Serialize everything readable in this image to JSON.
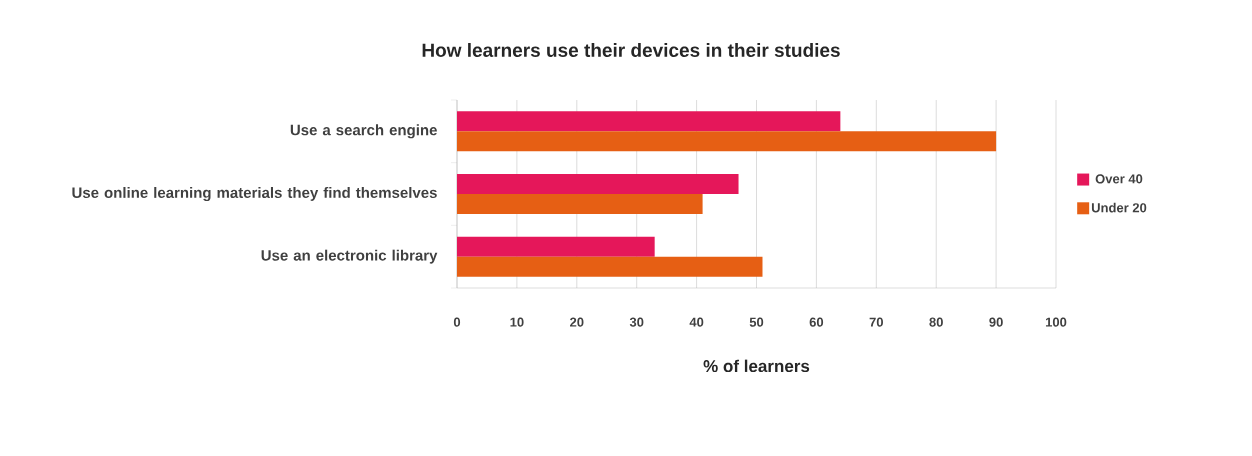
{
  "chart_data": {
    "type": "bar",
    "orientation": "horizontal",
    "title": "How learners use their devices in their studies",
    "xlabel": "% of learners",
    "categories": [
      "Use a search engine",
      "Use online learning materials they find themselves",
      "Use an electronic library"
    ],
    "series": [
      {
        "name": "Over 40",
        "color": "#e5175a",
        "values": [
          64,
          47,
          33
        ]
      },
      {
        "name": "Under 20",
        "color": "#e65f14",
        "values": [
          90,
          41,
          51
        ]
      }
    ],
    "xlim": [
      0,
      100
    ],
    "xticks": [
      0,
      10,
      20,
      30,
      40,
      50,
      60,
      70,
      80,
      90,
      100
    ],
    "grid": "x",
    "legend": "right"
  }
}
